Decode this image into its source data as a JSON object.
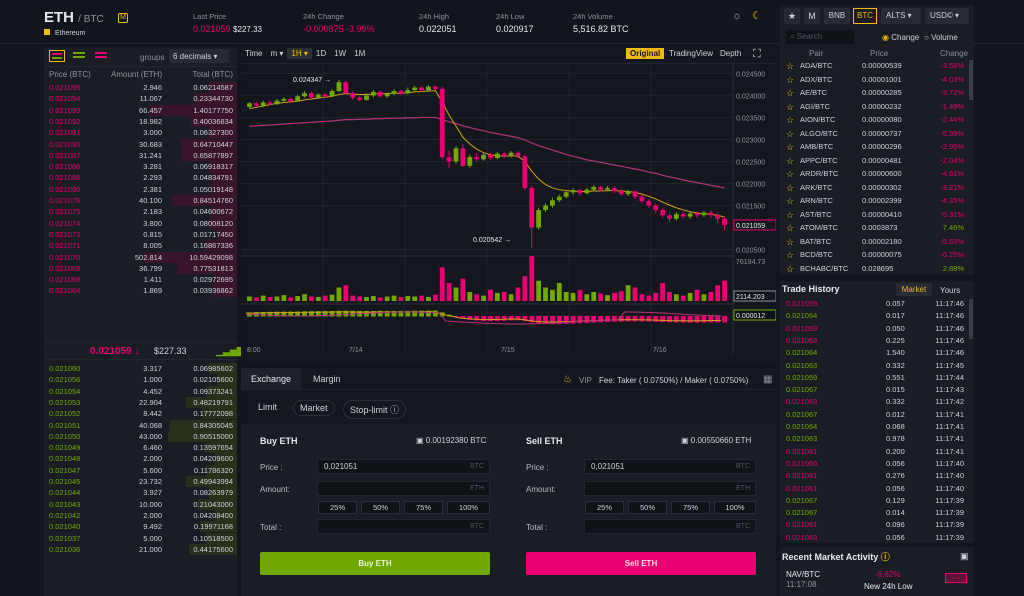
{
  "header": {
    "symbol": "ETH",
    "quote": "/ BTC",
    "badge": "M",
    "name": "Ethereum",
    "stats": [
      {
        "label": "Last Price",
        "v1": "0.021059",
        "v2": "$227.33"
      },
      {
        "label": "24h Change",
        "v1": "-0.000875",
        "v2": "-3.99%"
      },
      {
        "label": "24h High",
        "v1": "0.022051"
      },
      {
        "label": "24h Low",
        "v1": "0.020917"
      },
      {
        "label": "24h Volume",
        "v1": "5,516.82 BTC"
      }
    ]
  },
  "orderbook": {
    "groups_label": "groups",
    "groups_value": "6 decimals",
    "headers": [
      "Price (BTC)",
      "Amount (ETH)",
      "Total (BTC)"
    ],
    "asks": [
      [
        "0.021095",
        "2.946",
        "0.06214587",
        0.3
      ],
      [
        "0.021094",
        "11.067",
        "0.23344730",
        0.45
      ],
      [
        "0.021093",
        "66.457",
        "1.40177750",
        0.95
      ],
      [
        "0.021092",
        "18.982",
        "0.40036834",
        0.5
      ],
      [
        "0.021091",
        "3.000",
        "0.06327300",
        0.3
      ],
      [
        "0.021090",
        "30.683",
        "0.64710447",
        0.6
      ],
      [
        "0.021087",
        "31.241",
        "0.65877897",
        0.6
      ],
      [
        "0.021086",
        "3.281",
        "0.06918317",
        0.3
      ],
      [
        "0.021085",
        "2.293",
        "0.04834791",
        0.28
      ],
      [
        "0.021080",
        "2.381",
        "0.05019148",
        0.28
      ],
      [
        "0.021076",
        "40.100",
        "0.84514760",
        0.7
      ],
      [
        "0.021075",
        "2.183",
        "0.04600672",
        0.28
      ],
      [
        "0.021074",
        "3.800",
        "0.08008120",
        0.3
      ],
      [
        "0.021073",
        "0.815",
        "0.01717450",
        0.22
      ],
      [
        "0.021071",
        "8.005",
        "0.16867336",
        0.35
      ],
      [
        "0.021070",
        "502.814",
        "10.59429098",
        1.0
      ],
      [
        "0.021069",
        "36.799",
        "0.77531813",
        0.65
      ],
      [
        "0.021068",
        "1.411",
        "0.02972695",
        0.25
      ],
      [
        "0.021064",
        "1.869",
        "0.03936862",
        0.26
      ]
    ],
    "last_price": "0.021059 ↓",
    "last_usd": "$227.33",
    "bids": [
      [
        "0.021060",
        "3.317",
        "0.06985602",
        0.3
      ],
      [
        "0.021056",
        "1.000",
        "0.02105600",
        0.22
      ],
      [
        "0.021054",
        "4.452",
        "0.09373241",
        0.33
      ],
      [
        "0.021053",
        "22.904",
        "0.48219791",
        0.55
      ],
      [
        "0.021052",
        "8.442",
        "0.17772098",
        0.38
      ],
      [
        "0.021051",
        "40.068",
        "0.84305045",
        0.72
      ],
      [
        "0.021050",
        "43.000",
        "0.90515000",
        0.75
      ],
      [
        "0.021049",
        "6.460",
        "0.13597654",
        0.35
      ],
      [
        "0.021048",
        "2.000",
        "0.04209600",
        0.24
      ],
      [
        "0.021047",
        "5.600",
        "0.11786320",
        0.33
      ],
      [
        "0.021045",
        "23.732",
        "0.49943994",
        0.55
      ],
      [
        "0.021044",
        "3.927",
        "0.08263979",
        0.3
      ],
      [
        "0.021043",
        "10.000",
        "0.21043000",
        0.42
      ],
      [
        "0.021042",
        "2.000",
        "0.04208400",
        0.24
      ],
      [
        "0.021040",
        "9.492",
        "0.19971168",
        0.4
      ],
      [
        "0.021037",
        "5.000",
        "0.10518500",
        0.33
      ],
      [
        "0.021036",
        "21.000",
        "0.44175600",
        0.52
      ]
    ]
  },
  "chart": {
    "tools": [
      "Time",
      "m",
      "1H",
      "1D",
      "1W",
      "1M"
    ],
    "views": [
      "Original",
      "TradingView",
      "Depth"
    ],
    "axis": [
      "0.024500",
      "0.024000",
      "0.023500",
      "0.023000",
      "0.022500",
      "0.022000",
      "0.021500",
      "0.021059",
      "0.020500"
    ],
    "high_label": "0.024347",
    "low_label": "0.020542",
    "vol_axis": "76194.73",
    "vol_label": "2114.203",
    "macd_label": "0.000012",
    "xlabels": [
      "8:00",
      "7/14",
      "7/15",
      "7/16"
    ],
    "candles": [
      [
        0.02374,
        0.02382,
        0.02371,
        0.02385
      ],
      [
        0.02382,
        0.02377,
        0.02375,
        0.02386
      ],
      [
        0.02377,
        0.02384,
        0.02374,
        0.02388
      ],
      [
        0.02384,
        0.0238,
        0.02378,
        0.02389
      ],
      [
        0.0238,
        0.02388,
        0.02379,
        0.02392
      ],
      [
        0.02388,
        0.02392,
        0.02386,
        0.02396
      ],
      [
        0.02392,
        0.02386,
        0.02384,
        0.02395
      ],
      [
        0.02386,
        0.02398,
        0.02385,
        0.02402
      ],
      [
        0.02398,
        0.02405,
        0.02395,
        0.0241
      ],
      [
        0.02405,
        0.02395,
        0.02392,
        0.02408
      ],
      [
        0.02395,
        0.02402,
        0.02392,
        0.02405
      ],
      [
        0.02402,
        0.02398,
        0.02394,
        0.02406
      ],
      [
        0.02398,
        0.0241,
        0.02396,
        0.02415
      ],
      [
        0.0241,
        0.0243,
        0.02408,
        0.02435
      ],
      [
        0.0243,
        0.02405,
        0.02402,
        0.02433
      ],
      [
        0.02405,
        0.02395,
        0.0239,
        0.02409
      ],
      [
        0.02395,
        0.0239,
        0.02386,
        0.02398
      ],
      [
        0.0239,
        0.024,
        0.02388,
        0.02405
      ],
      [
        0.024,
        0.02408,
        0.02396,
        0.02412
      ],
      [
        0.02408,
        0.02398,
        0.02395,
        0.02411
      ],
      [
        0.02398,
        0.02404,
        0.02394,
        0.02407
      ],
      [
        0.02404,
        0.0241,
        0.02401,
        0.02414
      ],
      [
        0.0241,
        0.02405,
        0.024,
        0.02413
      ],
      [
        0.02405,
        0.02412,
        0.02403,
        0.02418
      ],
      [
        0.02412,
        0.02418,
        0.02409,
        0.02422
      ],
      [
        0.02418,
        0.02412,
        0.02408,
        0.02421
      ],
      [
        0.02412,
        0.0242,
        0.0241,
        0.02424
      ],
      [
        0.0242,
        0.02415,
        0.02412,
        0.02423
      ],
      [
        0.02415,
        0.0226,
        0.02255,
        0.0242
      ],
      [
        0.0226,
        0.0225,
        0.02235,
        0.02275
      ],
      [
        0.0225,
        0.0228,
        0.02245,
        0.02285
      ],
      [
        0.0228,
        0.0224,
        0.02238,
        0.0229
      ],
      [
        0.0224,
        0.0226,
        0.02236,
        0.02265
      ],
      [
        0.0226,
        0.02255,
        0.0225,
        0.02268
      ],
      [
        0.02255,
        0.02265,
        0.02252,
        0.0227
      ],
      [
        0.02265,
        0.02258,
        0.02254,
        0.0227
      ],
      [
        0.02258,
        0.02268,
        0.02255,
        0.02272
      ],
      [
        0.02268,
        0.02262,
        0.02258,
        0.02272
      ],
      [
        0.02262,
        0.0227,
        0.02259,
        0.02274
      ],
      [
        0.0227,
        0.02262,
        0.02258,
        0.02274
      ],
      [
        0.02262,
        0.0219,
        0.02185,
        0.02266
      ],
      [
        0.0219,
        0.021,
        0.02054,
        0.02195
      ],
      [
        0.021,
        0.0214,
        0.02095,
        0.02145
      ],
      [
        0.0214,
        0.0215,
        0.02135,
        0.02155
      ],
      [
        0.0215,
        0.02162,
        0.02145,
        0.02168
      ],
      [
        0.02162,
        0.0217,
        0.02158,
        0.02175
      ],
      [
        0.0217,
        0.0218,
        0.02166,
        0.02185
      ],
      [
        0.0218,
        0.02185,
        0.02175,
        0.0219
      ],
      [
        0.02185,
        0.02178,
        0.02172,
        0.02188
      ],
      [
        0.02178,
        0.02186,
        0.02175,
        0.0219
      ],
      [
        0.02186,
        0.02192,
        0.02183,
        0.02196
      ],
      [
        0.02192,
        0.02186,
        0.02182,
        0.02195
      ],
      [
        0.02186,
        0.0219,
        0.02182,
        0.02194
      ],
      [
        0.0219,
        0.02183,
        0.02178,
        0.02193
      ],
      [
        0.02183,
        0.02176,
        0.02172,
        0.02187
      ],
      [
        0.02176,
        0.02182,
        0.02172,
        0.02186
      ],
      [
        0.02182,
        0.0217,
        0.02165,
        0.02185
      ],
      [
        0.0217,
        0.0216,
        0.02155,
        0.02174
      ],
      [
        0.0216,
        0.0215,
        0.02145,
        0.02164
      ],
      [
        0.0215,
        0.0214,
        0.02132,
        0.02155
      ],
      [
        0.0214,
        0.02128,
        0.02122,
        0.02145
      ],
      [
        0.02128,
        0.0212,
        0.02112,
        0.02132
      ],
      [
        0.0212,
        0.0213,
        0.02116,
        0.02135
      ],
      [
        0.0213,
        0.02125,
        0.0212,
        0.02135
      ],
      [
        0.02125,
        0.02132,
        0.0212,
        0.02136
      ],
      [
        0.02132,
        0.02128,
        0.02122,
        0.02136
      ],
      [
        0.02128,
        0.02134,
        0.02124,
        0.02138
      ],
      [
        0.02134,
        0.02128,
        0.02122,
        0.02138
      ],
      [
        0.02128,
        0.0212,
        0.0211,
        0.02132
      ],
      [
        0.0212,
        0.02106,
        0.02095,
        0.02125
      ]
    ],
    "ma1": [
      0.0237,
      0.02373,
      0.02376,
      0.02379,
      0.02382,
      0.02384,
      0.02385,
      0.02387,
      0.0239,
      0.02392,
      0.02394,
      0.02396,
      0.02398,
      0.02402,
      0.02404,
      0.02403,
      0.02402,
      0.02402,
      0.02403,
      0.02404,
      0.02404,
      0.02405,
      0.02405,
      0.02406,
      0.02408,
      0.02409,
      0.0241,
      0.02411,
      0.02385,
      0.02355,
      0.0233,
      0.02305,
      0.0229,
      0.02278,
      0.0227,
      0.02265,
      0.02263,
      0.02262,
      0.02263,
      0.02262,
      0.0225,
      0.02228,
      0.0221,
      0.02198,
      0.0219,
      0.02186,
      0.02184,
      0.02183,
      0.02182,
      0.02182,
      0.02183,
      0.02183,
      0.02184,
      0.02184,
      0.02183,
      0.02182,
      0.0218,
      0.02176,
      0.02171,
      0.02165,
      0.02158,
      0.02151,
      0.02145,
      0.0214,
      0.02136,
      0.02133,
      0.02131,
      0.0213,
      0.02128,
      0.02124
    ],
    "ma2": [
      0.0233,
      0.02331,
      0.02332,
      0.02333,
      0.02334,
      0.02335,
      0.02336,
      0.02337,
      0.02338,
      0.02339,
      0.0234,
      0.02341,
      0.02342,
      0.02344,
      0.02345,
      0.02345,
      0.02346,
      0.02346,
      0.02347,
      0.02347,
      0.02348,
      0.02348,
      0.02348,
      0.02349,
      0.02349,
      0.0235,
      0.0235,
      0.0235,
      0.02345,
      0.0234,
      0.02336,
      0.02331,
      0.02327,
      0.02323,
      0.0232,
      0.02316,
      0.02313,
      0.0231,
      0.02307,
      0.02304,
      0.02299,
      0.02292,
      0.02286,
      0.02281,
      0.02276,
      0.02271,
      0.02266,
      0.02262,
      0.02258,
      0.02254,
      0.02251,
      0.02248,
      0.02245,
      0.02242,
      0.02239,
      0.02236,
      0.02233,
      0.0223,
      0.02226,
      0.02223,
      0.02219,
      0.02215,
      0.02212,
      0.02208,
      0.02205,
      0.02202,
      0.02199,
      0.02196,
      0.02193,
      0.0219
    ],
    "vols": [
      0.1,
      0.08,
      0.12,
      0.09,
      0.1,
      0.13,
      0.08,
      0.11,
      0.15,
      0.1,
      0.09,
      0.12,
      0.14,
      0.3,
      0.35,
      0.12,
      0.1,
      0.09,
      0.11,
      0.08,
      0.1,
      0.12,
      0.09,
      0.11,
      0.1,
      0.12,
      0.09,
      0.14,
      0.75,
      0.4,
      0.3,
      0.5,
      0.2,
      0.15,
      0.12,
      0.25,
      0.18,
      0.2,
      0.15,
      0.3,
      0.55,
      1.0,
      0.45,
      0.3,
      0.25,
      0.4,
      0.2,
      0.18,
      0.25,
      0.15,
      0.2,
      0.17,
      0.13,
      0.18,
      0.22,
      0.35,
      0.3,
      0.15,
      0.12,
      0.18,
      0.4,
      0.2,
      0.15,
      0.12,
      0.18,
      0.25,
      0.15,
      0.2,
      0.35,
      0.45
    ]
  },
  "trade": {
    "tabs": [
      "Exchange",
      "Margin"
    ],
    "vip": "VIP",
    "fees": "Fee: Taker ( 0.0750%) / Maker ( 0.0750%)",
    "types": [
      "Limit",
      "Market",
      "Stop-limit"
    ],
    "buy": {
      "title": "Buy ETH",
      "balance": "0.00192380 BTC",
      "price": "0,021051",
      "btn": "Buy ETH"
    },
    "sell": {
      "title": "Sell ETH",
      "balance": "0.00550660 ETH",
      "price": "0,021051",
      "btn": "Sell ETH"
    },
    "labels": {
      "price": "Price :",
      "amount": "Amount:",
      "total": "Total :"
    },
    "units": {
      "btc": "BTC",
      "eth": "ETH"
    },
    "pcts": [
      "25%",
      "50%",
      "75%",
      "100%"
    ]
  },
  "markets": {
    "tabs": [
      "★",
      "M",
      "BNB",
      "BTC",
      "ALTS",
      "USD©"
    ],
    "search_placeholder": "Search",
    "radio1": "Change",
    "radio2": "Volume",
    "headers": [
      "Pair",
      "Price",
      "Change"
    ],
    "rows": [
      [
        "ADA/BTC",
        "0.00000539",
        "-3.58%"
      ],
      [
        "ADX/BTC",
        "0.00001001",
        "-4.03%"
      ],
      [
        "AE/BTC",
        "0.00000285",
        "-3.72%"
      ],
      [
        "AGI/BTC",
        "0.00000232",
        "-1.49%"
      ],
      [
        "AION/BTC",
        "0.00000080",
        "-2.44%"
      ],
      [
        "ALGO/BTC",
        "0.00000737",
        "-5.99%"
      ],
      [
        "AMB/BTC",
        "0.00000296",
        "-2.95%"
      ],
      [
        "APPC/BTC",
        "0.00000481",
        "-2.04%"
      ],
      [
        "ARDR/BTC",
        "0.00000600",
        "-4.61%"
      ],
      [
        "ARK/BTC",
        "0.00000302",
        "-3.21%"
      ],
      [
        "ARN/BTC",
        "0.00002399",
        "-4.35%"
      ],
      [
        "AST/BTC",
        "0.00000410",
        "-5.31%"
      ],
      [
        "ATOM/BTC",
        "0.0003873",
        "7.46%"
      ],
      [
        "BAT/BTC",
        "0.00002180",
        "-5.55%"
      ],
      [
        "BCD/BTC",
        "0.00000075",
        "-6.25%"
      ],
      [
        "BCHABC/BTC",
        "0.028695",
        "2.88%"
      ]
    ]
  },
  "history": {
    "title": "Trade History",
    "tabs": [
      "Market",
      "Yours"
    ],
    "rows": [
      [
        "0.021059",
        "0.057",
        "11:17:46",
        "r"
      ],
      [
        "0.021064",
        "0.017",
        "11:17:46",
        "g"
      ],
      [
        "0.021059",
        "0.050",
        "11:17:46",
        "r"
      ],
      [
        "0.021063",
        "0.225",
        "11:17:46",
        "r"
      ],
      [
        "0.021064",
        "1.540",
        "11:17:46",
        "g"
      ],
      [
        "0.021063",
        "0.332",
        "11:17:45",
        "g"
      ],
      [
        "0.021059",
        "0.551",
        "11:17:44",
        "g"
      ],
      [
        "0.021067",
        "0.015",
        "11:17:43",
        "g"
      ],
      [
        "0.021063",
        "0.332",
        "11:17:42",
        "r"
      ],
      [
        "0.021067",
        "0.012",
        "11:17:41",
        "g"
      ],
      [
        "0.021064",
        "0.068",
        "11:17:41",
        "g"
      ],
      [
        "0.021063",
        "0.978",
        "11:17:41",
        "g"
      ],
      [
        "0.021061",
        "0.200",
        "11:17:41",
        "r"
      ],
      [
        "0.021060",
        "0.056",
        "11:17:40",
        "r"
      ],
      [
        "0.021061",
        "0.276",
        "11:17:40",
        "r"
      ],
      [
        "0.021061",
        "0.056",
        "11:17:40",
        "r"
      ],
      [
        "0.021067",
        "0.129",
        "11:17:39",
        "g"
      ],
      [
        "0.021067",
        "0.014",
        "11:17:39",
        "g"
      ],
      [
        "0.021061",
        "0.096",
        "11:17:39",
        "r"
      ],
      [
        "0.021063",
        "0.056",
        "11:17:39",
        "r"
      ]
    ]
  },
  "activity": {
    "title": "Recent Market Activity",
    "pair": "NAV/BTC",
    "time": "11:17:08",
    "change": "-6.62%",
    "desc": "New 24h Low"
  }
}
